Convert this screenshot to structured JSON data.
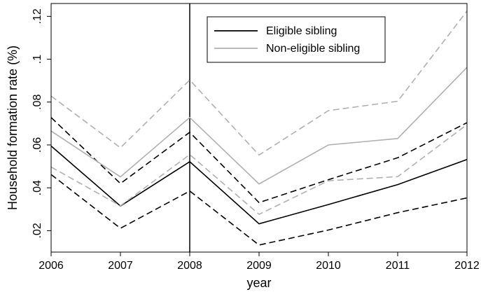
{
  "chart_data": {
    "type": "line",
    "title": "",
    "xlabel": "year",
    "ylabel": "Household formation rate (%)",
    "x": [
      2006,
      2007,
      2008,
      2009,
      2010,
      2011,
      2012
    ],
    "x_tick_labels": [
      "2006",
      "2007",
      "2008",
      "2009",
      "2010",
      "2011",
      "2012"
    ],
    "y_ticks": [
      0.02,
      0.04,
      0.06,
      0.08,
      0.1,
      0.12
    ],
    "y_tick_labels": [
      ".02",
      ".04",
      ".06",
      ".08",
      ".1",
      ".12"
    ],
    "xlim": [
      2006,
      2012
    ],
    "ylim": [
      0.01,
      0.126
    ],
    "vertical_reference_line": 2008,
    "grid": false,
    "legend_position": "top-center",
    "series": [
      {
        "name": "Eligible sibling",
        "color": "#000000",
        "style": "solid",
        "values": [
          0.0595,
          0.0315,
          0.0522,
          0.0232,
          0.0322,
          0.0415,
          0.0532
        ]
      },
      {
        "color": "#000000",
        "style": "dashed",
        "values": [
          0.0728,
          0.042,
          0.0659,
          0.0331,
          0.0438,
          0.054,
          0.0704
        ]
      },
      {
        "color": "#000000",
        "style": "dashed",
        "values": [
          0.0462,
          0.0211,
          0.0385,
          0.0133,
          0.0203,
          0.0284,
          0.0353
        ]
      },
      {
        "name": "Non-eligible sibling",
        "color": "#b0b0b0",
        "style": "solid",
        "values": [
          0.0665,
          0.0451,
          0.0728,
          0.0418,
          0.06,
          0.063,
          0.0962
        ]
      },
      {
        "color": "#b0b0b0",
        "style": "dashed",
        "values": [
          0.0828,
          0.0587,
          0.0903,
          0.0553,
          0.076,
          0.0804,
          0.1225
        ]
      },
      {
        "color": "#b0b0b0",
        "style": "dashed",
        "values": [
          0.0497,
          0.0316,
          0.0555,
          0.0276,
          0.0433,
          0.0452,
          0.0695
        ]
      }
    ]
  }
}
